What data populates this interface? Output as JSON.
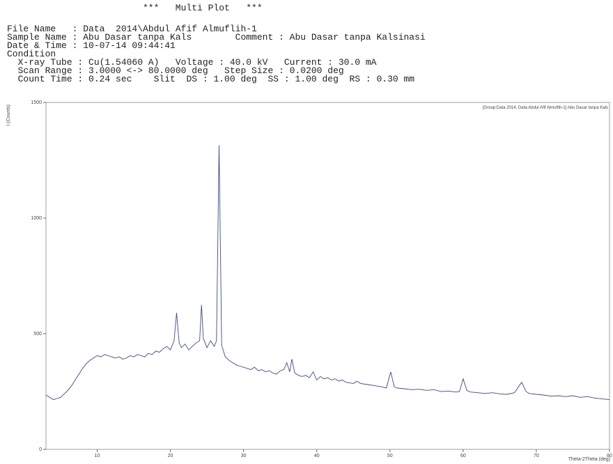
{
  "header": {
    "title": "***   Multi Plot   ***",
    "lines": [
      "File Name   : Data  2014\\Abdul Afif Almuflih-1",
      "Sample Name : Abu Dasar tanpa Kals        Comment : Abu Dasar tanpa Kalsinasi",
      "Date & Time : 10-07-14 09:44:41",
      "Condition",
      "  X-ray Tube : Cu(1.54060 A)   Voltage : 40.0 kV   Current : 30.0 mA",
      "  Scan Range : 3.0000 <-> 80.0000 deg   Step Size : 0.0200 deg",
      "  Count Time : 0.24 sec    Slit  DS : 1.00 deg  SS : 1.00 deg  RS : 0.30 mm"
    ]
  },
  "chart_data": {
    "type": "line",
    "legend": "[Group:Data  2014, Data:Abdul Afif Almuflih-1] Abu Dasar tanpa Kals",
    "xlabel": "Theta-2Theta (deg)",
    "ylabel": "I (Counts)",
    "color": "#3a4a8a",
    "xlim": [
      3,
      80
    ],
    "ylim": [
      0,
      1500
    ],
    "xticks": [
      10,
      20,
      30,
      40,
      50,
      60,
      70,
      80
    ],
    "yticks": [
      0,
      500,
      1000,
      1500
    ],
    "x": [
      3,
      3.5,
      4,
      4.5,
      5,
      5.5,
      6,
      6.5,
      7,
      7.5,
      8,
      8.5,
      9,
      9.5,
      10,
      10.5,
      11,
      11.5,
      12,
      12.5,
      13,
      13.5,
      14,
      14.5,
      15,
      15.5,
      16,
      16.5,
      17,
      17.5,
      18,
      18.5,
      19,
      19.5,
      20,
      20.5,
      20.85,
      21.2,
      21.5,
      22,
      22.5,
      23,
      23.5,
      24,
      24.25,
      24.5,
      25,
      25.5,
      26,
      26.3,
      26.65,
      27,
      27.5,
      28,
      28.5,
      29,
      29.5,
      30,
      30.5,
      31,
      31.5,
      32,
      32.5,
      33,
      33.5,
      34,
      34.5,
      35,
      35.5,
      35.9,
      36.3,
      36.6,
      37,
      37.5,
      38,
      38.5,
      39,
      39.5,
      40,
      40.5,
      41,
      41.5,
      42,
      42.5,
      43,
      43.5,
      44,
      45,
      45.5,
      46,
      47,
      48,
      49,
      49.5,
      50.1,
      50.6,
      51,
      52,
      53,
      54,
      55,
      56,
      57,
      58,
      59,
      59.5,
      60,
      60.5,
      61,
      62,
      63,
      64,
      65,
      66,
      67,
      68,
      68.6,
      69,
      70,
      71,
      72,
      73,
      74,
      75,
      76,
      77,
      78,
      79,
      80
    ],
    "values": [
      235,
      225,
      215,
      220,
      225,
      240,
      255,
      275,
      300,
      325,
      350,
      370,
      385,
      395,
      405,
      400,
      410,
      405,
      400,
      395,
      400,
      390,
      395,
      405,
      400,
      410,
      405,
      400,
      415,
      410,
      425,
      420,
      435,
      445,
      430,
      470,
      590,
      460,
      440,
      455,
      430,
      445,
      460,
      470,
      625,
      480,
      440,
      470,
      445,
      470,
      1315,
      450,
      400,
      385,
      375,
      365,
      360,
      355,
      350,
      345,
      355,
      340,
      345,
      335,
      340,
      330,
      325,
      340,
      345,
      375,
      335,
      390,
      330,
      320,
      315,
      320,
      310,
      335,
      300,
      315,
      305,
      310,
      300,
      305,
      295,
      300,
      290,
      285,
      295,
      285,
      280,
      275,
      270,
      265,
      335,
      270,
      265,
      262,
      258,
      260,
      255,
      258,
      250,
      252,
      248,
      250,
      305,
      255,
      248,
      245,
      242,
      245,
      240,
      238,
      245,
      290,
      250,
      242,
      238,
      235,
      230,
      232,
      228,
      232,
      225,
      228,
      222,
      218,
      215
    ]
  }
}
